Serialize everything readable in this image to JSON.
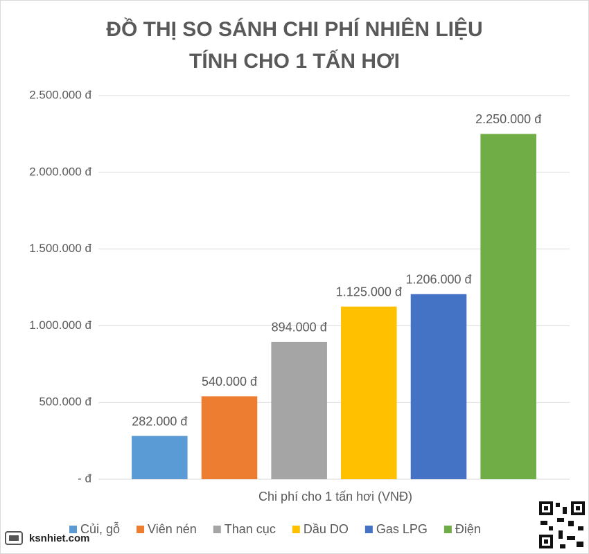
{
  "chart_data": {
    "type": "bar",
    "title": [
      "ĐỒ THỊ SO SÁNH CHI PHÍ NHIÊN LIỆU",
      "TÍNH CHO 1 TẤN HƠI"
    ],
    "categories": [
      "Chi phí cho 1 tấn hơi (VNĐ)"
    ],
    "series": [
      {
        "name": "Củi, gỗ",
        "color": "#5b9bd5",
        "values": [
          282000
        ],
        "value_labels": [
          "282.000 đ"
        ]
      },
      {
        "name": "Viên nén",
        "color": "#ed7d31",
        "values": [
          540000
        ],
        "value_labels": [
          "540.000 đ"
        ]
      },
      {
        "name": "Than cục",
        "color": "#a5a5a5",
        "values": [
          894000
        ],
        "value_labels": [
          "894.000 đ"
        ]
      },
      {
        "name": "Dầu DO",
        "color": "#ffc000",
        "values": [
          1125000
        ],
        "value_labels": [
          "1.125.000 đ"
        ]
      },
      {
        "name": "Gas LPG",
        "color": "#4472c4",
        "values": [
          1206000
        ],
        "value_labels": [
          "1.206.000 đ"
        ]
      },
      {
        "name": "Điện",
        "color": "#70ad47",
        "values": [
          2250000
        ],
        "value_labels": [
          "2.250.000 đ"
        ]
      }
    ],
    "ylim": [
      0,
      2500000
    ],
    "yticks": [
      {
        "value": 0,
        "label": "- đ"
      },
      {
        "value": 500000,
        "label": "500.000 đ"
      },
      {
        "value": 1000000,
        "label": "1.000.000 đ"
      },
      {
        "value": 1500000,
        "label": "1.500.000 đ"
      },
      {
        "value": 2000000,
        "label": "2.000.000 đ"
      },
      {
        "value": 2500000,
        "label": "2.500.000 đ"
      }
    ],
    "grid": true,
    "legend": "bottom"
  },
  "watermark": "ksnhiet.com"
}
